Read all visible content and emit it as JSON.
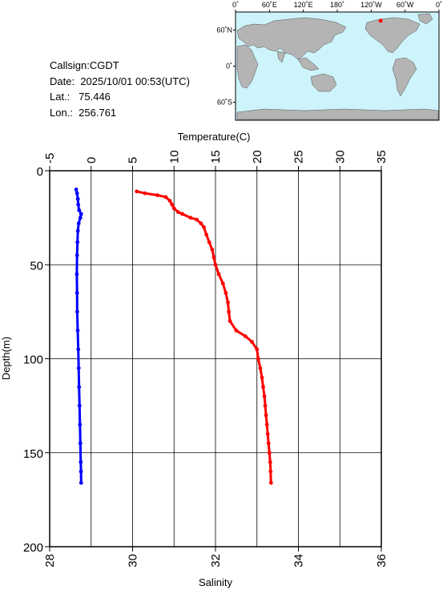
{
  "station": {
    "callsign_label": "Callsign:",
    "callsign": "CGDT",
    "date_label": "Date:",
    "date": "2025/10/01 00:53(UTC)",
    "lat_label": "Lat.:",
    "lat": "75.446",
    "lon_label": "Lon.:",
    "lon": "256.761"
  },
  "map": {
    "lon_labels": [
      "0˚",
      "60˚E",
      "120˚E",
      "180˚",
      "120˚W",
      "60˚W",
      "0˚"
    ],
    "lat_labels": [
      "60˚N",
      "0˚",
      "60˚S"
    ],
    "ocean_color": "#cdf4fb",
    "land_color": "#b4b4b4",
    "marker_color": "#ff0000",
    "marker_lon": 256.761,
    "marker_lat": 75.446
  },
  "chart_data": {
    "type": "scatter",
    "xlabel_top": "Temperature(C)",
    "xlabel_bottom": "Salinity",
    "ylabel": "Depth(m)",
    "temperature_axis": {
      "lim": [
        -5,
        35
      ],
      "ticks": [
        "-5",
        "0",
        "5",
        "10",
        "15",
        "20",
        "25",
        "30",
        "35"
      ]
    },
    "salinity_axis": {
      "lim": [
        28,
        36
      ],
      "ticks": [
        "28",
        "30",
        "32",
        "34",
        "36"
      ]
    },
    "depth_axis": {
      "lim": [
        0,
        200
      ],
      "ticks": [
        "0",
        "50",
        "100",
        "150",
        "200"
      ],
      "inverted": true
    },
    "grid": true,
    "series": [
      {
        "quantity": "temperature",
        "color": "#0000ff",
        "points": [
          [
            -1.8,
            10
          ],
          [
            -1.7,
            12
          ],
          [
            -1.6,
            15
          ],
          [
            -1.55,
            18
          ],
          [
            -1.45,
            21
          ],
          [
            -1.2,
            23
          ],
          [
            -1.3,
            25
          ],
          [
            -1.5,
            28
          ],
          [
            -1.6,
            32
          ],
          [
            -1.65,
            38
          ],
          [
            -1.7,
            45
          ],
          [
            -1.72,
            55
          ],
          [
            -1.7,
            65
          ],
          [
            -1.68,
            75
          ],
          [
            -1.62,
            85
          ],
          [
            -1.55,
            95
          ],
          [
            -1.5,
            105
          ],
          [
            -1.45,
            115
          ],
          [
            -1.4,
            125
          ],
          [
            -1.35,
            135
          ],
          [
            -1.3,
            145
          ],
          [
            -1.25,
            155
          ],
          [
            -1.22,
            160
          ],
          [
            -1.2,
            166
          ]
        ]
      },
      {
        "quantity": "salinity",
        "color": "#ff0000",
        "points": [
          [
            30.1,
            11
          ],
          [
            30.3,
            12
          ],
          [
            30.6,
            13
          ],
          [
            30.8,
            14
          ],
          [
            30.9,
            16
          ],
          [
            30.95,
            18
          ],
          [
            31.0,
            20
          ],
          [
            31.1,
            22
          ],
          [
            31.2,
            23
          ],
          [
            31.4,
            25
          ],
          [
            31.55,
            26
          ],
          [
            31.65,
            28
          ],
          [
            31.72,
            30
          ],
          [
            31.78,
            34
          ],
          [
            31.85,
            38
          ],
          [
            31.92,
            42
          ],
          [
            31.96,
            46
          ],
          [
            32.0,
            50
          ],
          [
            32.08,
            55
          ],
          [
            32.18,
            60
          ],
          [
            32.25,
            65
          ],
          [
            32.3,
            70
          ],
          [
            32.32,
            75
          ],
          [
            32.35,
            80
          ],
          [
            32.5,
            85
          ],
          [
            32.72,
            88
          ],
          [
            32.88,
            91
          ],
          [
            33.0,
            95
          ],
          [
            33.03,
            100
          ],
          [
            33.08,
            105
          ],
          [
            33.12,
            110
          ],
          [
            33.15,
            115
          ],
          [
            33.18,
            120
          ],
          [
            33.2,
            125
          ],
          [
            33.22,
            130
          ],
          [
            33.24,
            135
          ],
          [
            33.26,
            140
          ],
          [
            33.28,
            145
          ],
          [
            33.3,
            150
          ],
          [
            33.32,
            155
          ],
          [
            33.33,
            160
          ],
          [
            33.34,
            166
          ]
        ]
      }
    ]
  }
}
